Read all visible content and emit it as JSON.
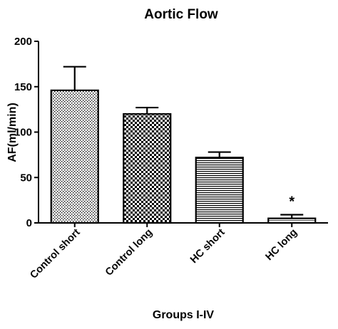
{
  "chart_data": {
    "type": "bar",
    "title": "Aortic Flow",
    "xlabel": "Groups I-IV",
    "ylabel": "AF(ml/min)",
    "ylim": [
      0,
      200
    ],
    "yticks": [
      "0",
      "50",
      "100",
      "150",
      "200"
    ],
    "categories": [
      "Control short",
      "Control long",
      "HC short",
      "HC long"
    ],
    "values": [
      146,
      120,
      72,
      5
    ],
    "errors": [
      26,
      7,
      6,
      4
    ],
    "annotations": [
      {
        "category": "HC long",
        "text": "*"
      }
    ],
    "grid": false,
    "legend": "none",
    "colors": {
      "bar_stroke": "#000000",
      "pattern": "#000000",
      "background": "#ffffff"
    }
  }
}
